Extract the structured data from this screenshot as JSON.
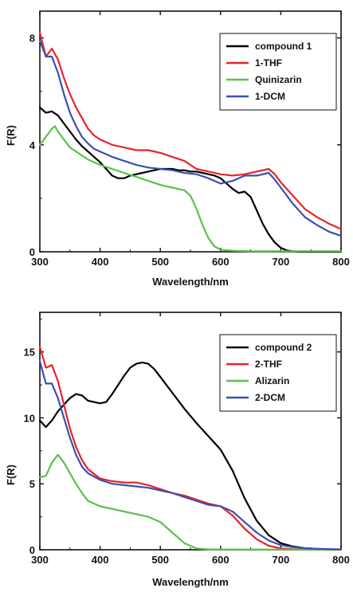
{
  "chart_data": [
    {
      "type": "line",
      "xlabel": "Wavelength/nm",
      "ylabel": "F(R)",
      "xlim": [
        300,
        800
      ],
      "ylim": [
        0,
        9
      ],
      "xticks": [
        300,
        400,
        500,
        600,
        700,
        800
      ],
      "yticks": [
        0,
        4,
        8
      ],
      "grid": false,
      "legend_position": "top-right",
      "series": [
        {
          "name": "compound 1",
          "color": "#000000",
          "x": [
            300,
            310,
            320,
            330,
            340,
            350,
            360,
            370,
            380,
            390,
            400,
            410,
            420,
            430,
            440,
            450,
            460,
            470,
            480,
            490,
            500,
            510,
            520,
            530,
            540,
            550,
            560,
            570,
            580,
            590,
            600,
            610,
            620,
            630,
            640,
            650,
            660,
            670,
            680,
            690,
            700,
            710,
            720,
            730,
            740,
            800
          ],
          "y": [
            5.4,
            5.2,
            5.25,
            5.1,
            4.8,
            4.5,
            4.2,
            3.95,
            3.75,
            3.55,
            3.35,
            3.1,
            2.85,
            2.75,
            2.75,
            2.85,
            2.9,
            2.95,
            3.0,
            3.05,
            3.1,
            3.1,
            3.1,
            3.05,
            3.05,
            3.0,
            3.0,
            2.95,
            2.9,
            2.85,
            2.75,
            2.55,
            2.35,
            2.2,
            2.25,
            2.05,
            1.55,
            1.05,
            0.65,
            0.35,
            0.15,
            0.05,
            0.02,
            0.0,
            0.0,
            0.0
          ]
        },
        {
          "name": "1-THF",
          "color": "#e8242a",
          "x": [
            300,
            310,
            320,
            330,
            340,
            350,
            360,
            370,
            380,
            390,
            400,
            420,
            440,
            460,
            480,
            500,
            520,
            540,
            560,
            580,
            600,
            620,
            640,
            660,
            680,
            690,
            700,
            720,
            740,
            760,
            780,
            800
          ],
          "y": [
            8.2,
            7.3,
            7.6,
            7.2,
            6.5,
            5.9,
            5.4,
            5.0,
            4.6,
            4.35,
            4.2,
            4.0,
            3.9,
            3.8,
            3.8,
            3.7,
            3.55,
            3.4,
            3.1,
            3.0,
            2.9,
            2.85,
            2.9,
            3.0,
            3.1,
            2.9,
            2.6,
            2.1,
            1.6,
            1.3,
            1.05,
            0.85
          ]
        },
        {
          "name": "Quinizarin",
          "color": "#5ac24a",
          "x": [
            300,
            310,
            320,
            325,
            330,
            340,
            350,
            360,
            370,
            380,
            390,
            400,
            420,
            440,
            460,
            480,
            500,
            520,
            540,
            550,
            560,
            570,
            580,
            590,
            600,
            620,
            650,
            700,
            750,
            800
          ],
          "y": [
            4.0,
            4.3,
            4.6,
            4.7,
            4.5,
            4.2,
            3.9,
            3.75,
            3.6,
            3.45,
            3.35,
            3.25,
            3.1,
            2.95,
            2.8,
            2.65,
            2.5,
            2.4,
            2.3,
            2.1,
            1.6,
            1.0,
            0.5,
            0.2,
            0.08,
            0.04,
            0.02,
            0.02,
            0.02,
            0.02
          ]
        },
        {
          "name": "1-DCM",
          "color": "#3b4fb3",
          "x": [
            300,
            310,
            320,
            330,
            340,
            350,
            360,
            370,
            380,
            390,
            400,
            420,
            440,
            460,
            480,
            500,
            520,
            540,
            560,
            580,
            600,
            620,
            640,
            660,
            680,
            690,
            700,
            720,
            740,
            760,
            780,
            800
          ],
          "y": [
            7.9,
            7.3,
            7.3,
            6.7,
            5.9,
            5.2,
            4.7,
            4.3,
            4.05,
            3.85,
            3.75,
            3.55,
            3.4,
            3.25,
            3.15,
            3.1,
            3.05,
            2.95,
            2.9,
            2.75,
            2.55,
            2.65,
            2.85,
            2.85,
            2.95,
            2.7,
            2.4,
            1.8,
            1.3,
            1.0,
            0.75,
            0.6
          ]
        }
      ]
    },
    {
      "type": "line",
      "xlabel": "Wavelength/nm",
      "ylabel": "F(R)",
      "xlim": [
        300,
        800
      ],
      "ylim": [
        0,
        18
      ],
      "xticks": [
        300,
        400,
        500,
        600,
        700,
        800
      ],
      "yticks": [
        0,
        5,
        10,
        15
      ],
      "grid": false,
      "legend_position": "top-right",
      "series": [
        {
          "name": "compound 2",
          "color": "#000000",
          "x": [
            300,
            310,
            320,
            330,
            340,
            350,
            360,
            370,
            380,
            390,
            400,
            410,
            420,
            430,
            440,
            450,
            460,
            470,
            480,
            490,
            500,
            520,
            540,
            560,
            580,
            600,
            620,
            640,
            660,
            680,
            700,
            720,
            740,
            760,
            780,
            800
          ],
          "y": [
            9.8,
            9.3,
            9.8,
            10.5,
            11.0,
            11.5,
            11.8,
            11.7,
            11.3,
            11.2,
            11.1,
            11.2,
            11.8,
            12.5,
            13.2,
            13.8,
            14.1,
            14.2,
            14.1,
            13.7,
            13.1,
            11.9,
            10.7,
            9.6,
            8.6,
            7.6,
            6.0,
            3.9,
            2.2,
            1.1,
            0.5,
            0.25,
            0.12,
            0.06,
            0.03,
            0.02
          ]
        },
        {
          "name": "2-THF",
          "color": "#e8242a",
          "x": [
            300,
            310,
            320,
            330,
            340,
            350,
            360,
            370,
            380,
            400,
            420,
            440,
            460,
            480,
            500,
            520,
            540,
            560,
            580,
            600,
            620,
            640,
            660,
            680,
            700,
            720,
            740,
            760,
            800
          ],
          "y": [
            15.4,
            13.8,
            14.0,
            12.8,
            11.0,
            9.2,
            7.8,
            6.8,
            6.1,
            5.4,
            5.2,
            5.1,
            5.1,
            4.9,
            4.6,
            4.3,
            4.1,
            3.8,
            3.5,
            3.3,
            2.6,
            1.6,
            0.8,
            0.3,
            0.1,
            0.05,
            0.02,
            0.02,
            0.02
          ]
        },
        {
          "name": "Alizarin",
          "color": "#5ac24a",
          "x": [
            300,
            310,
            320,
            330,
            340,
            350,
            360,
            370,
            380,
            400,
            420,
            440,
            460,
            480,
            500,
            520,
            540,
            560,
            580,
            600,
            650,
            700,
            800
          ],
          "y": [
            5.5,
            5.6,
            6.6,
            7.2,
            6.6,
            5.8,
            5.0,
            4.3,
            3.7,
            3.3,
            3.1,
            2.9,
            2.7,
            2.5,
            2.1,
            1.3,
            0.5,
            0.1,
            0.03,
            0.02,
            0.02,
            0.02,
            0.02
          ]
        },
        {
          "name": "2-DCM",
          "color": "#3b4fb3",
          "x": [
            300,
            310,
            320,
            330,
            340,
            350,
            360,
            370,
            380,
            400,
            420,
            440,
            460,
            480,
            500,
            520,
            540,
            560,
            580,
            600,
            620,
            640,
            660,
            680,
            700,
            720,
            740,
            760,
            780,
            800
          ],
          "y": [
            14.3,
            12.6,
            12.6,
            11.5,
            10.0,
            8.5,
            7.2,
            6.3,
            5.8,
            5.3,
            5.0,
            4.9,
            4.8,
            4.7,
            4.5,
            4.3,
            4.0,
            3.7,
            3.4,
            3.3,
            2.9,
            2.1,
            1.3,
            0.7,
            0.35,
            0.2,
            0.12,
            0.08,
            0.05,
            0.03
          ]
        }
      ]
    }
  ]
}
